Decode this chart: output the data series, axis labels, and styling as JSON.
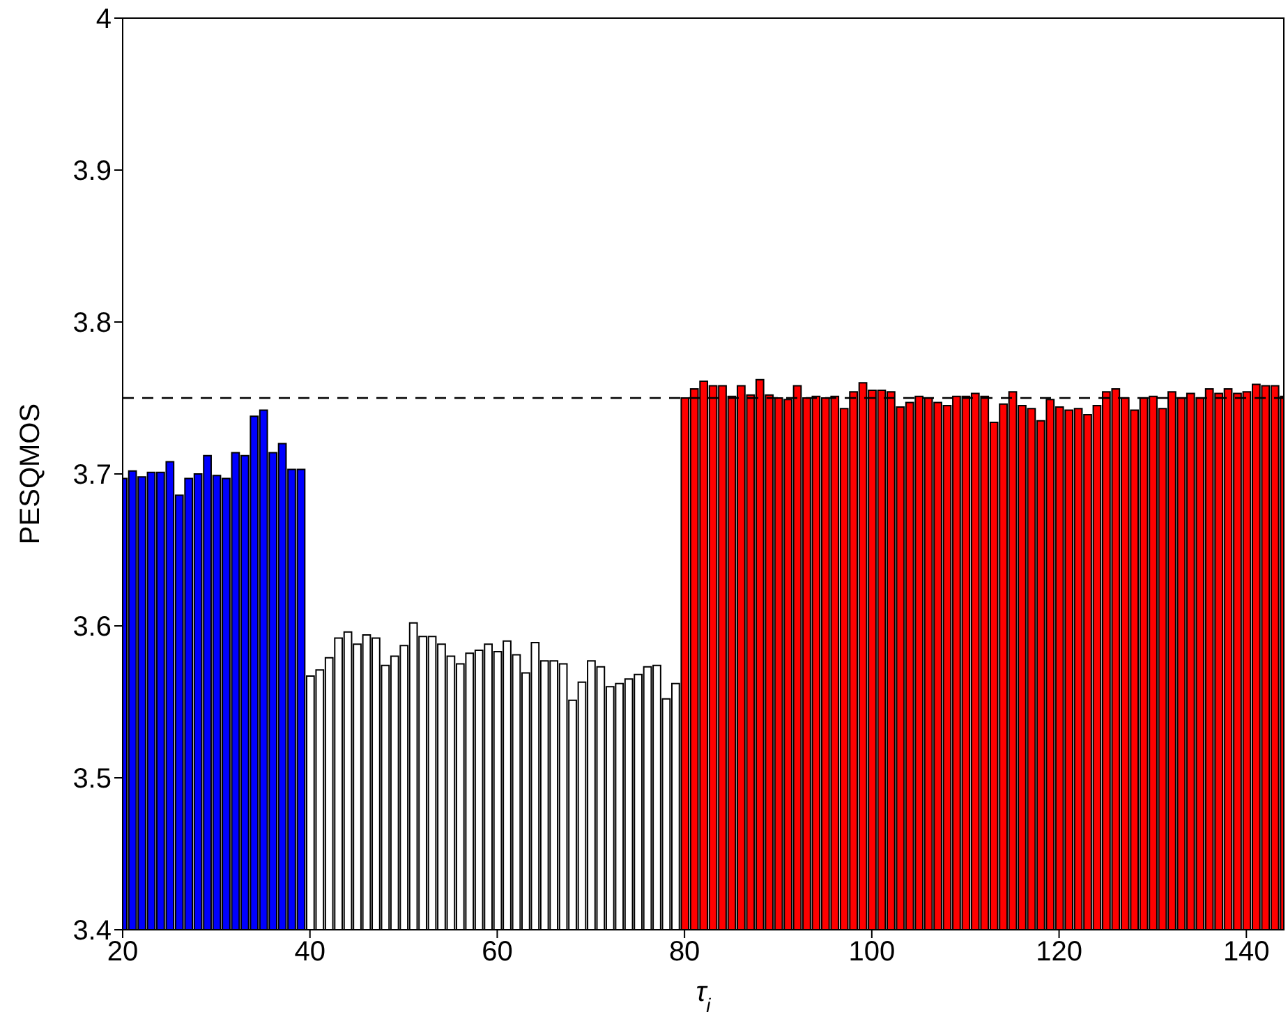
{
  "chart_data": {
    "type": "bar",
    "xlabel": "τ$_{i}$",
    "ylabel": "PESQMOS",
    "x": [
      20,
      21,
      22,
      23,
      24,
      25,
      26,
      27,
      28,
      29,
      30,
      31,
      32,
      33,
      34,
      35,
      36,
      37,
      38,
      39,
      40,
      41,
      42,
      43,
      44,
      45,
      46,
      47,
      48,
      49,
      50,
      51,
      52,
      53,
      54,
      55,
      56,
      57,
      58,
      59,
      60,
      61,
      62,
      63,
      64,
      65,
      66,
      67,
      68,
      69,
      70,
      71,
      72,
      73,
      74,
      75,
      76,
      77,
      78,
      79,
      80,
      81,
      82,
      83,
      84,
      85,
      86,
      87,
      88,
      89,
      90,
      91,
      92,
      93,
      94,
      95,
      96,
      97,
      98,
      99,
      100,
      101,
      102,
      103,
      104,
      105,
      106,
      107,
      108,
      109,
      110,
      111,
      112,
      113,
      114,
      115,
      116,
      117,
      118,
      119,
      120,
      121,
      122,
      123,
      124,
      125,
      126,
      127,
      128,
      129,
      130,
      131,
      132,
      133,
      134,
      135,
      136,
      137,
      138,
      139,
      140,
      141,
      142,
      143,
      144
    ],
    "values": [
      3.697,
      3.702,
      3.698,
      3.701,
      3.701,
      3.708,
      3.686,
      3.697,
      3.7,
      3.712,
      3.699,
      3.697,
      3.714,
      3.712,
      3.738,
      3.742,
      3.714,
      3.72,
      3.703,
      3.703,
      3.567,
      3.571,
      3.579,
      3.592,
      3.596,
      3.588,
      3.594,
      3.592,
      3.574,
      3.58,
      3.587,
      3.602,
      3.593,
      3.593,
      3.588,
      3.58,
      3.575,
      3.582,
      3.584,
      3.588,
      3.583,
      3.59,
      3.581,
      3.569,
      3.589,
      3.577,
      3.577,
      3.575,
      3.551,
      3.563,
      3.577,
      3.573,
      3.56,
      3.562,
      3.565,
      3.568,
      3.573,
      3.574,
      3.552,
      3.562,
      3.75,
      3.756,
      3.761,
      3.758,
      3.758,
      3.751,
      3.758,
      3.752,
      3.762,
      3.752,
      3.75,
      3.749,
      3.758,
      3.75,
      3.751,
      3.75,
      3.751,
      3.743,
      3.754,
      3.76,
      3.755,
      3.755,
      3.754,
      3.744,
      3.747,
      3.751,
      3.75,
      3.747,
      3.745,
      3.751,
      3.751,
      3.753,
      3.751,
      3.734,
      3.746,
      3.754,
      3.745,
      3.743,
      3.735,
      3.749,
      3.744,
      3.742,
      3.743,
      3.739,
      3.745,
      3.754,
      3.756,
      3.75,
      3.742,
      3.75,
      3.751,
      3.743,
      3.754,
      3.75,
      3.753,
      3.75,
      3.756,
      3.753,
      3.756,
      3.753,
      3.754,
      3.759,
      3.758,
      3.758,
      3.751
    ],
    "colors": [
      "#0000ff",
      "#0000ff",
      "#0000ff",
      "#0000ff",
      "#0000ff",
      "#0000ff",
      "#0000ff",
      "#0000ff",
      "#0000ff",
      "#0000ff",
      "#0000ff",
      "#0000ff",
      "#0000ff",
      "#0000ff",
      "#0000ff",
      "#0000ff",
      "#0000ff",
      "#0000ff",
      "#0000ff",
      "#0000ff",
      "#ffffff",
      "#ffffff",
      "#ffffff",
      "#ffffff",
      "#ffffff",
      "#ffffff",
      "#ffffff",
      "#ffffff",
      "#ffffff",
      "#ffffff",
      "#ffffff",
      "#ffffff",
      "#ffffff",
      "#ffffff",
      "#ffffff",
      "#ffffff",
      "#ffffff",
      "#ffffff",
      "#ffffff",
      "#ffffff",
      "#ffffff",
      "#ffffff",
      "#ffffff",
      "#ffffff",
      "#ffffff",
      "#ffffff",
      "#ffffff",
      "#ffffff",
      "#ffffff",
      "#ffffff",
      "#ffffff",
      "#ffffff",
      "#ffffff",
      "#ffffff",
      "#ffffff",
      "#ffffff",
      "#ffffff",
      "#ffffff",
      "#ffffff",
      "#ffffff",
      "#ff0000",
      "#ff0000",
      "#ff0000",
      "#ff0000",
      "#ff0000",
      "#ff0000",
      "#ff0000",
      "#ff0000",
      "#ff0000",
      "#ff0000",
      "#ff0000",
      "#ff0000",
      "#ff0000",
      "#ff0000",
      "#ff0000",
      "#ff0000",
      "#ff0000",
      "#ff0000",
      "#ff0000",
      "#ff0000",
      "#ff0000",
      "#ff0000",
      "#ff0000",
      "#ff0000",
      "#ff0000",
      "#ff0000",
      "#ff0000",
      "#ff0000",
      "#ff0000",
      "#ff0000",
      "#ff0000",
      "#ff0000",
      "#ff0000",
      "#ff0000",
      "#ff0000",
      "#ff0000",
      "#ff0000",
      "#ff0000",
      "#ff0000",
      "#ff0000",
      "#ff0000",
      "#ff0000",
      "#ff0000",
      "#ff0000",
      "#ff0000",
      "#ff0000",
      "#ff0000",
      "#ff0000",
      "#ff0000",
      "#ff0000",
      "#ff0000",
      "#ff0000",
      "#ff0000",
      "#ff0000",
      "#ff0000",
      "#ff0000",
      "#ff0000",
      "#ff0000",
      "#ff0000",
      "#ff0000",
      "#ff0000",
      "#ff0000",
      "#ff0000",
      "#ff0000",
      "#ff0000"
    ],
    "xlim": [
      20,
      144
    ],
    "xticks": [
      20,
      40,
      60,
      80,
      100,
      120,
      140
    ],
    "ylim": [
      3.4,
      4
    ],
    "yticks": [
      3.4,
      3.5,
      3.6,
      3.7,
      3.8,
      3.9,
      4
    ],
    "ref_lines": [
      {
        "axis": "y",
        "value": 3.75,
        "color": "#000000",
        "line_style": "dashed"
      }
    ],
    "grid": false,
    "legend": false
  }
}
